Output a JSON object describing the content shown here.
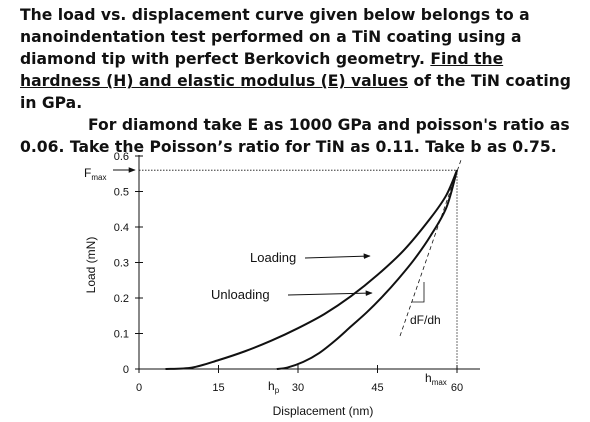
{
  "problem": {
    "line1_a": "The load vs. displacement curve given below belongs to a nanoindentation test performed on a TiN coating using a diamond tip with perfect Berkovich geometry.",
    "line1_b": "Find the hardness (H) and elastic modulus (E) values",
    "line1_c": "of the TiN coating in GPa.",
    "line2": "For diamond take E as 1000 GPa and poisson's ratio as 0.06. Take the Poisson’s ratio for TiN as 0.11. Take b as 0.75."
  },
  "chart_data": {
    "type": "line",
    "xlabel": "Displacement (nm)",
    "ylabel": "Load (mN)",
    "xlim": [
      0,
      65
    ],
    "ylim": [
      0,
      0.6
    ],
    "x_ticks": [
      0,
      15,
      30,
      45,
      60
    ],
    "x_tick_labels": [
      "0",
      "15",
      "30",
      "45",
      "60"
    ],
    "y_ticks": [
      0,
      0.1,
      0.2,
      0.3,
      0.4,
      0.5,
      0.6
    ],
    "y_tick_labels": [
      "0",
      "0.1",
      "0.2",
      "0.3",
      "0.4",
      "0.5",
      "0.6"
    ],
    "series": [
      {
        "name": "Loading",
        "points": [
          [
            5,
            0
          ],
          [
            10,
            0.004
          ],
          [
            15,
            0.025
          ],
          [
            20,
            0.05
          ],
          [
            25,
            0.08
          ],
          [
            30,
            0.115
          ],
          [
            35,
            0.155
          ],
          [
            40,
            0.205
          ],
          [
            45,
            0.265
          ],
          [
            50,
            0.335
          ],
          [
            55,
            0.425
          ],
          [
            58,
            0.49
          ],
          [
            60,
            0.56
          ]
        ]
      },
      {
        "name": "Unloading",
        "points": [
          [
            26,
            0
          ],
          [
            28,
            0.004
          ],
          [
            31,
            0.02
          ],
          [
            34,
            0.045
          ],
          [
            37,
            0.08
          ],
          [
            40,
            0.12
          ],
          [
            43,
            0.16
          ],
          [
            46,
            0.205
          ],
          [
            49,
            0.255
          ],
          [
            52,
            0.31
          ],
          [
            55,
            0.375
          ],
          [
            58,
            0.455
          ],
          [
            60,
            0.56
          ]
        ]
      }
    ],
    "annotations": {
      "fmax": "F",
      "fmax_sub": "max",
      "hp": "h",
      "hp_sub": "p",
      "hmax": "h",
      "hmax_sub": "max",
      "slope_label": "dF/dh",
      "loading_label": "Loading",
      "unloading_label": "Unloading"
    },
    "fmax_value": 0.56,
    "hp_value": 26,
    "hmax_value": 60
  }
}
